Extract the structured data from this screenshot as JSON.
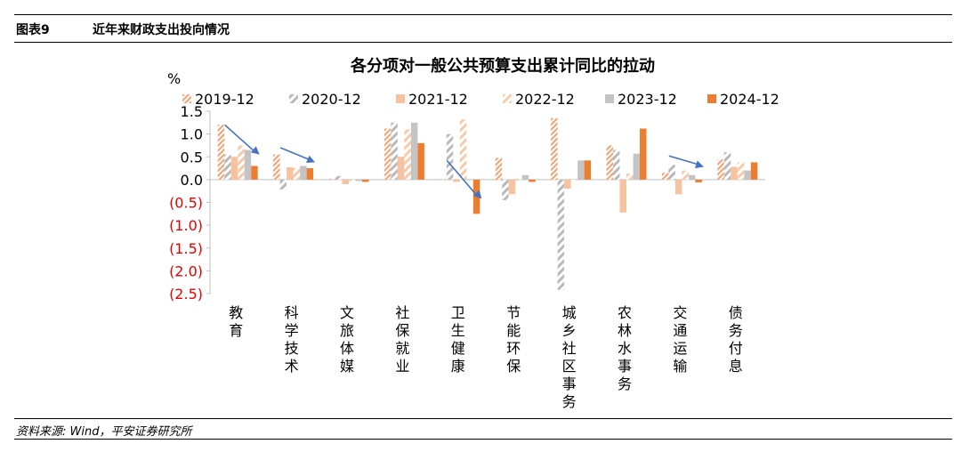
{
  "figure": {
    "number": "图表9",
    "title": "近年来财政支出投向情况",
    "source": "资料来源: Wind，平安证券研究所"
  },
  "chart_data": {
    "type": "bar",
    "title": "各分项对一般公共预算支出累计同比的拉动",
    "ylabel": "%",
    "ylim": [
      -2.5,
      1.5
    ],
    "yticks": [
      1.5,
      1.0,
      0.5,
      0.0,
      -0.5,
      -1.0,
      -1.5,
      -2.0,
      -2.5
    ],
    "ytick_labels": [
      "1.5",
      "1.0",
      "0.5",
      "0.0",
      "(0.5)",
      "(1.0)",
      "(1.5)",
      "(2.0)",
      "(2.5)"
    ],
    "negative_tick_color": "#e60000",
    "legend_position": "top",
    "grid": false,
    "categories": [
      "教育",
      "科学技术",
      "文旅体媒",
      "社保就业",
      "卫生健康",
      "节能环保",
      "城乡社区事务",
      "农林水事务",
      "交通运输",
      "债务付息"
    ],
    "series": [
      {
        "name": "2019-12",
        "color": "#f4a070",
        "pattern": "hatch-dense",
        "values": [
          1.2,
          0.55,
          0.02,
          1.12,
          0.0,
          0.48,
          1.35,
          0.75,
          0.15,
          0.44
        ]
      },
      {
        "name": "2020-12",
        "color": "#b9b9b9",
        "pattern": "hatch-sparse",
        "values": [
          0.55,
          -0.22,
          0.08,
          1.25,
          1.0,
          -0.45,
          -2.42,
          0.65,
          0.32,
          0.6
        ]
      },
      {
        "name": "2021-12",
        "color": "#f7c29f",
        "pattern": "solid",
        "values": [
          0.5,
          0.27,
          -0.1,
          0.5,
          -0.05,
          -0.32,
          -0.2,
          -0.72,
          -0.32,
          0.28
        ]
      },
      {
        "name": "2022-12",
        "color": "#f7c9a8",
        "pattern": "hatch-sparse",
        "values": [
          0.75,
          0.25,
          -0.03,
          1.1,
          1.32,
          0.02,
          0.0,
          0.13,
          0.2,
          0.38
        ]
      },
      {
        "name": "2023-12",
        "color": "#c4c4c4",
        "pattern": "solid",
        "values": [
          0.65,
          0.3,
          -0.03,
          1.25,
          0.0,
          0.1,
          0.42,
          0.57,
          0.1,
          0.2
        ]
      },
      {
        "name": "2024-12",
        "color": "#ed7d31",
        "pattern": "solid",
        "values": [
          0.3,
          0.25,
          -0.05,
          0.8,
          -0.75,
          -0.05,
          0.42,
          1.12,
          -0.06,
          0.38
        ]
      }
    ],
    "annotations": [
      {
        "type": "arrow",
        "color": "#4472c4",
        "from": {
          "category": "教育",
          "value": 1.2
        },
        "to": {
          "category": "教育",
          "value": 0.55
        }
      },
      {
        "type": "arrow",
        "color": "#4472c4",
        "from": {
          "category": "科学技术",
          "value": 0.7
        },
        "to": {
          "category": "科学技术",
          "value": 0.38
        }
      },
      {
        "type": "arrow",
        "color": "#4472c4",
        "from": {
          "category": "卫生健康",
          "value": 0.42
        },
        "to": {
          "category": "卫生健康",
          "value": -0.42
        }
      },
      {
        "type": "arrow",
        "color": "#4472c4",
        "from": {
          "category": "交通运输",
          "value": 0.52
        },
        "to": {
          "category": "交通运输",
          "value": 0.28
        }
      }
    ]
  }
}
